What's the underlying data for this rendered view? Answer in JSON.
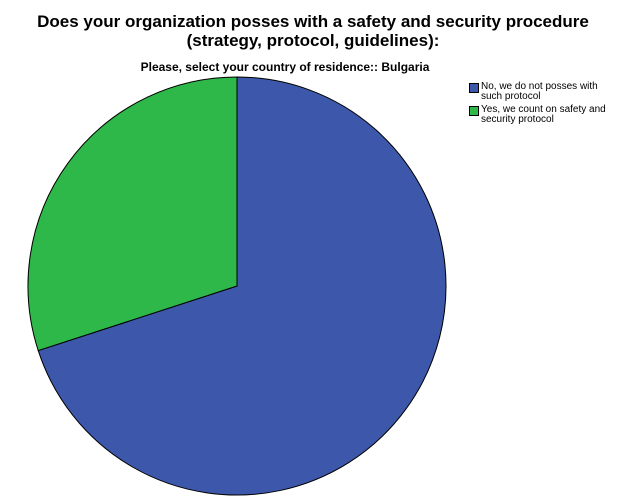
{
  "chart_data": {
    "type": "pie",
    "title": "Does your organization posses with a safety and security procedure (strategy, protocol, guidelines):",
    "subtitle": "Please, select your country of residence:: Bulgaria",
    "categories": [
      "No, we do not posses with such protocol",
      "Yes, we count on safety and security protocol"
    ],
    "values": [
      70,
      30
    ],
    "colors": [
      "#3d58ab",
      "#2fb84a"
    ],
    "legend": "top-right"
  }
}
